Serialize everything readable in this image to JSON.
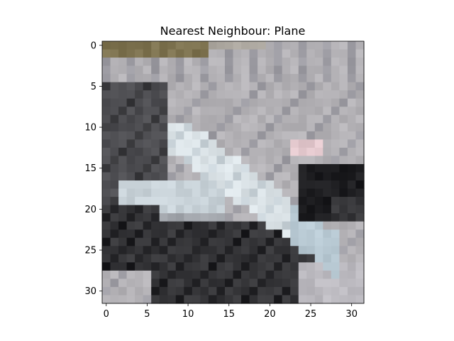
{
  "chart_data": {
    "type": "heatmap",
    "title": "Nearest Neighbour: Plane",
    "xlabel": "",
    "ylabel": "",
    "xlim": [
      -0.5,
      31.5
    ],
    "ylim": [
      31.5,
      -0.5
    ],
    "xticks": [
      0,
      5,
      10,
      15,
      20,
      25,
      30
    ],
    "yticks": [
      0,
      5,
      10,
      15,
      20,
      25,
      30
    ],
    "grid": false,
    "legend": "none",
    "image_size": [
      32,
      32
    ],
    "cmap_note": "RGB image (approximate reconstruction)",
    "palette": {
      "sky_top": "#7e7350",
      "sky_light": "#a9a49c",
      "sky_gray": "#b4b2b6",
      "sky_mid": "#9d9ca3",
      "dark_ground": "#4e4e52",
      "darker_ground": "#37373a",
      "near_black": "#1c1c1f",
      "plane_white": "#dbe3e7",
      "plane_light": "#c8d2d8",
      "plane_blue": "#b7c8d2",
      "wing_gray": "#a3a7ad",
      "pink": "#e2c7cc",
      "bottom_light": "#bcbac0"
    }
  }
}
